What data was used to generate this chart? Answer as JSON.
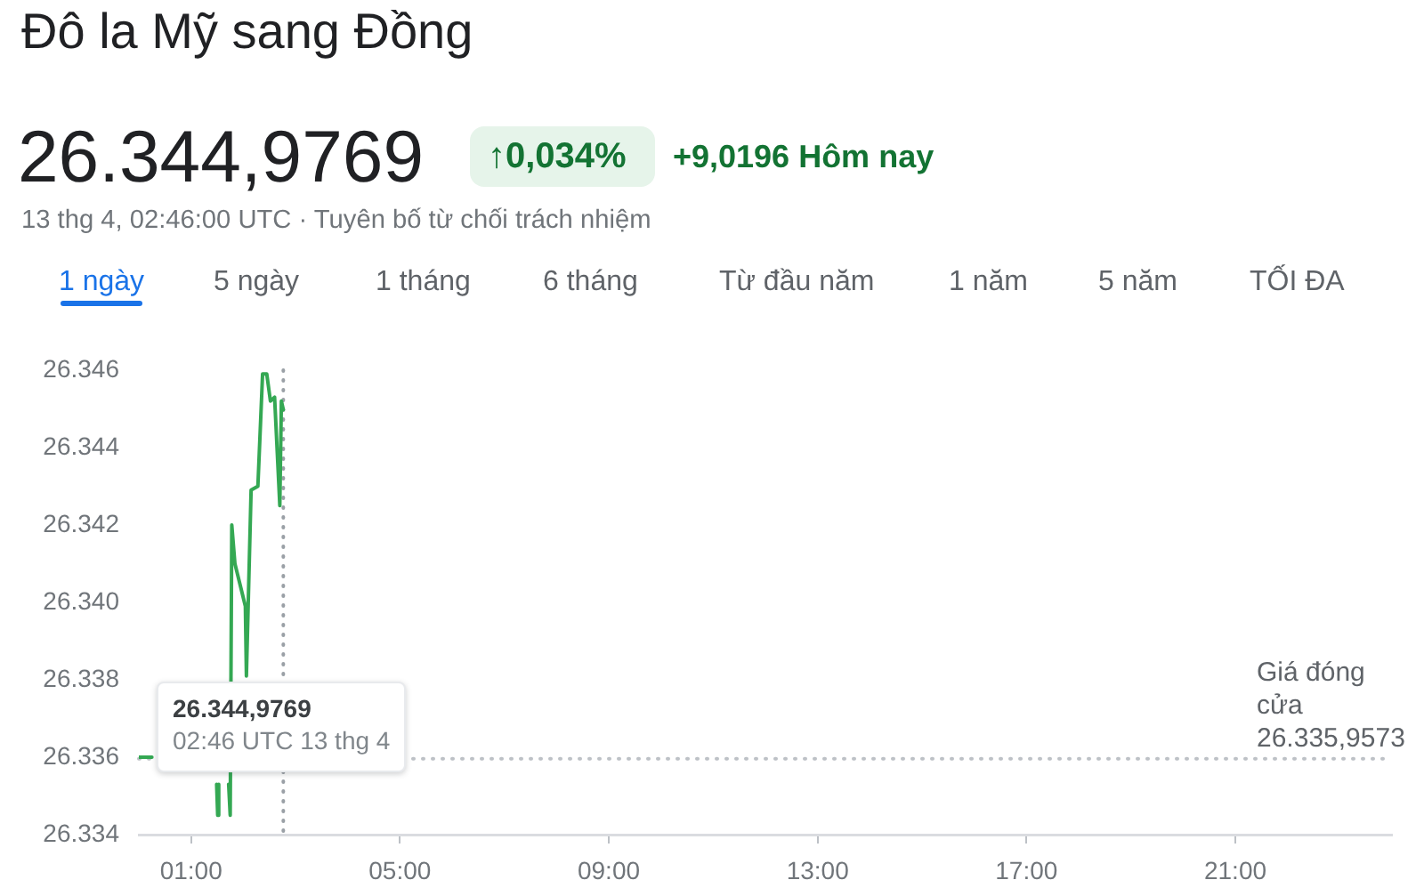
{
  "chart_data": {
    "type": "line",
    "title": "Đô la Mỹ sang Đồng",
    "subtitle": "26.344,9769",
    "annotations": [
      "↑0,034%",
      "+9,0196 Hôm nay",
      "13 thg 4, 02:46:00 UTC · Tuyên bố từ chối trách nhiệm",
      "1 ngày",
      "5 ngày",
      "1 tháng",
      "6 tháng",
      "Từ đầu năm",
      "1 năm",
      "5 năm",
      "TỐI ĐA",
      "26.344,9769",
      "02:46 UTC 13 thg 4"
    ],
    "x": [
      0,
      0.25,
      1.0,
      1.49,
      1.51,
      1.53,
      1.63,
      1.72,
      1.75,
      1.78,
      1.84,
      2.04,
      2.06,
      2.15,
      2.28,
      2.37,
      2.45,
      2.52,
      2.6,
      2.7,
      2.73,
      2.767
    ],
    "values": [
      26336,
      26336,
      null,
      26335.3,
      26334.5,
      26335.3,
      null,
      26335.3,
      26334.5,
      26342,
      26341,
      26339.9,
      26338.1,
      26342.9,
      26343,
      26345.9,
      26345.9,
      26345.2,
      26345.3,
      26342.5,
      26345.2,
      26344.9769
    ],
    "color": "#34a853",
    "xlim": [
      0,
      24
    ],
    "xticks": [
      {
        "value": 1,
        "label": "01:00"
      },
      {
        "value": 5,
        "label": "05:00"
      },
      {
        "value": 9,
        "label": "09:00"
      },
      {
        "value": 13,
        "label": "13:00"
      },
      {
        "value": 17,
        "label": "17:00"
      },
      {
        "value": 21,
        "label": "21:00"
      }
    ],
    "ylim": [
      26334,
      26346
    ],
    "yticks": [
      {
        "value": 26334,
        "label": "26.334"
      },
      {
        "value": 26336,
        "label": "26.336"
      },
      {
        "value": 26338,
        "label": "26.338"
      },
      {
        "value": 26340,
        "label": "26.340"
      },
      {
        "value": 26342,
        "label": "26.342"
      },
      {
        "value": 26344,
        "label": "26.344"
      },
      {
        "value": 26346,
        "label": "26.346"
      }
    ],
    "ref_lines": [
      {
        "axis": "y",
        "value": 26335.9573,
        "label": "Giá đóng cửa 26.335,9573",
        "color": "#bdc1c6",
        "line_style": "dotted"
      },
      {
        "axis": "x",
        "value": 2.767,
        "color": "#9aa0a6",
        "line_style": "dotted"
      }
    ],
    "marker": "none",
    "line_style": "solid"
  }
}
